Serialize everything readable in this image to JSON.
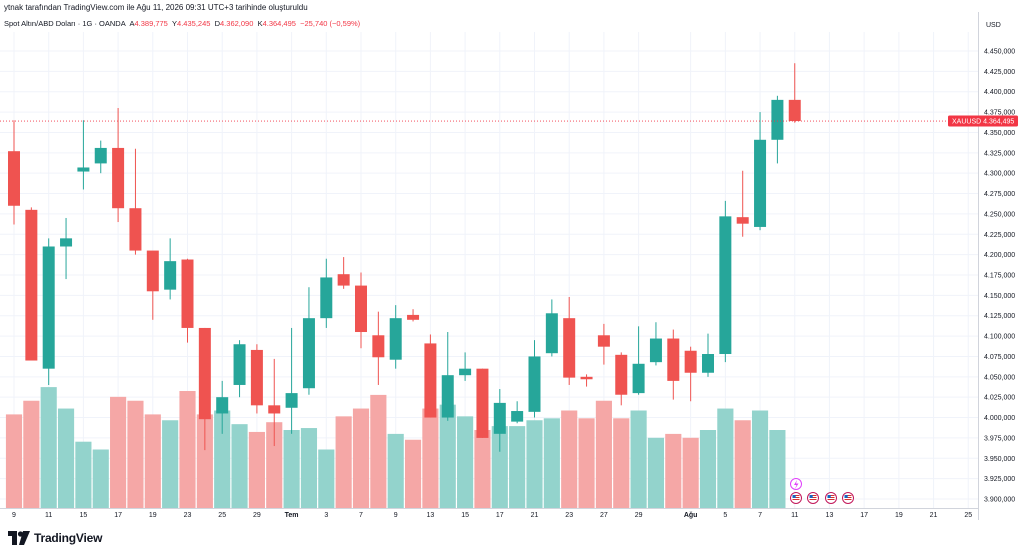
{
  "header": {
    "attribution": "ytnak tarafından TradingView.com ile Ağu 11, 2026 09:31 UTC+3 tarihinde oluşturuldu"
  },
  "legend": {
    "symbol_desc": "Spot Altın/ABD Doları · 1G · OANDA",
    "o_label": "A",
    "o_val": "4.389,775",
    "h_label": "Y",
    "h_val": "4.435,245",
    "l_label": "D",
    "l_val": "4.362,090",
    "c_label": "K",
    "c_val": "4.364,495",
    "change": "−25,740 (−0,59%)"
  },
  "brand": {
    "name": "TradingView",
    "logo_icon": "tradingview-logo-icon"
  },
  "colors": {
    "up": "#26a69a",
    "down": "#ef5350",
    "up_vol": "#93d3cc",
    "down_vol": "#f5a7a6",
    "grid": "#f0f3fa",
    "price_line": "#f23645"
  },
  "chart_data": {
    "type": "candlestick",
    "symbol": "XAUUSD",
    "currency": "USD",
    "last_price": "4.364,495",
    "ylim": [
      3890000,
      4460000
    ],
    "y_ticks": [
      "4.450,000",
      "4.425,000",
      "4.400,000",
      "4.375,000",
      "4.350,000",
      "4.325,000",
      "4.300,000",
      "4.275,000",
      "4.250,000",
      "4.225,000",
      "4.200,000",
      "4.175,000",
      "4.150,000",
      "4.125,000",
      "4.100,000",
      "4.075,000",
      "4.050,000",
      "4.025,000",
      "4.000,000",
      "3.975,000",
      "3.950,000",
      "3.925,000",
      "3.900,000"
    ],
    "x_ticks": [
      {
        "label": "9",
        "i": 0
      },
      {
        "label": "11",
        "i": 2
      },
      {
        "label": "15",
        "i": 4
      },
      {
        "label": "17",
        "i": 6
      },
      {
        "label": "19",
        "i": 8
      },
      {
        "label": "23",
        "i": 10
      },
      {
        "label": "25",
        "i": 12
      },
      {
        "label": "29",
        "i": 14
      },
      {
        "label": "Tem",
        "i": 16
      },
      {
        "label": "3",
        "i": 18
      },
      {
        "label": "7",
        "i": 20
      },
      {
        "label": "9",
        "i": 22
      },
      {
        "label": "13",
        "i": 24
      },
      {
        "label": "15",
        "i": 26
      },
      {
        "label": "17",
        "i": 28
      },
      {
        "label": "21",
        "i": 30
      },
      {
        "label": "23",
        "i": 32
      },
      {
        "label": "27",
        "i": 34
      },
      {
        "label": "29",
        "i": 36
      },
      {
        "label": "Ağu",
        "i": 39
      },
      {
        "label": "5",
        "i": 41
      },
      {
        "label": "7",
        "i": 43
      },
      {
        "label": "11",
        "i": 45
      },
      {
        "label": "13",
        "i": 47
      },
      {
        "label": "17",
        "i": 49
      },
      {
        "label": "19",
        "i": 51
      },
      {
        "label": "21",
        "i": 53
      },
      {
        "label": "25",
        "i": 55
      }
    ],
    "candles": [
      {
        "o": 4327,
        "h": 4365,
        "l": 4237,
        "c": 4260,
        "v": 4.8
      },
      {
        "o": 4255,
        "h": 4258,
        "l": 4070,
        "c": 4070,
        "v": 5.5
      },
      {
        "o": 4060,
        "h": 4220,
        "l": 4040,
        "c": 4210,
        "v": 6.2
      },
      {
        "o": 4210,
        "h": 4245,
        "l": 4170,
        "c": 4220,
        "v": 5.1
      },
      {
        "o": 4302,
        "h": 4365,
        "l": 4280,
        "c": 4307,
        "v": 3.4
      },
      {
        "o": 4312,
        "h": 4340,
        "l": 4300,
        "c": 4331,
        "v": 3.0
      },
      {
        "o": 4331,
        "h": 4380,
        "l": 4240,
        "c": 4257,
        "v": 5.7
      },
      {
        "o": 4257,
        "h": 4330,
        "l": 4200,
        "c": 4205,
        "v": 5.5
      },
      {
        "o": 4205,
        "h": 4202,
        "l": 4120,
        "c": 4155,
        "v": 4.8
      },
      {
        "o": 4157,
        "h": 4220,
        "l": 4145,
        "c": 4192,
        "v": 4.5
      },
      {
        "o": 4194,
        "h": 4195,
        "l": 4092,
        "c": 4110,
        "v": 6.0
      },
      {
        "o": 4110,
        "h": 4110,
        "l": 3960,
        "c": 3998,
        "v": 4.8
      },
      {
        "o": 4005,
        "h": 4045,
        "l": 3980,
        "c": 4025,
        "v": 5.0
      },
      {
        "o": 4040,
        "h": 4095,
        "l": 4025,
        "c": 4090,
        "v": 4.3
      },
      {
        "o": 4083,
        "h": 4090,
        "l": 4005,
        "c": 4015,
        "v": 3.9
      },
      {
        "o": 4015,
        "h": 4072,
        "l": 3965,
        "c": 4005,
        "v": 4.4
      },
      {
        "o": 4012,
        "h": 4110,
        "l": 3980,
        "c": 4030,
        "v": 4.0
      },
      {
        "o": 4036,
        "h": 4160,
        "l": 4028,
        "c": 4122,
        "v": 4.1
      },
      {
        "o": 4122,
        "h": 4195,
        "l": 4110,
        "c": 4172,
        "v": 3.0
      },
      {
        "o": 4176,
        "h": 4197,
        "l": 4158,
        "c": 4162,
        "v": 4.7
      },
      {
        "o": 4162,
        "h": 4178,
        "l": 4085,
        "c": 4105,
        "v": 5.1
      },
      {
        "o": 4101,
        "h": 4130,
        "l": 4040,
        "c": 4074,
        "v": 5.8
      },
      {
        "o": 4071,
        "h": 4138,
        "l": 4060,
        "c": 4122,
        "v": 3.8
      },
      {
        "o": 4126,
        "h": 4133,
        "l": 4118,
        "c": 4120,
        "v": 3.5
      },
      {
        "o": 4091,
        "h": 4102,
        "l": 4000,
        "c": 4000,
        "v": 5.1
      },
      {
        "o": 4000,
        "h": 4105,
        "l": 3996,
        "c": 4052,
        "v": 5.3
      },
      {
        "o": 4052,
        "h": 4080,
        "l": 4045,
        "c": 4060,
        "v": 4.7
      },
      {
        "o": 4060,
        "h": 4060,
        "l": 3975,
        "c": 3975,
        "v": 4.0
      },
      {
        "o": 3980,
        "h": 4035,
        "l": 3958,
        "c": 4018,
        "v": 4.2
      },
      {
        "o": 3995,
        "h": 4020,
        "l": 3993,
        "c": 4008,
        "v": 4.2
      },
      {
        "o": 4007,
        "h": 4095,
        "l": 4000,
        "c": 4075,
        "v": 4.5
      },
      {
        "o": 4079,
        "h": 4145,
        "l": 4075,
        "c": 4128,
        "v": 4.6
      },
      {
        "o": 4122,
        "h": 4148,
        "l": 4040,
        "c": 4049,
        "v": 5.0
      },
      {
        "o": 4050,
        "h": 4053,
        "l": 4038,
        "c": 4047,
        "v": 4.6
      },
      {
        "o": 4101,
        "h": 4115,
        "l": 4065,
        "c": 4087,
        "v": 5.5
      },
      {
        "o": 4077,
        "h": 4080,
        "l": 4015,
        "c": 4028,
        "v": 4.6
      },
      {
        "o": 4030,
        "h": 4112,
        "l": 4028,
        "c": 4066,
        "v": 5.0
      },
      {
        "o": 4068,
        "h": 4117,
        "l": 4064,
        "c": 4097,
        "v": 3.6
      },
      {
        "o": 4097,
        "h": 4108,
        "l": 4022,
        "c": 4045,
        "v": 3.8
      },
      {
        "o": 4082,
        "h": 4087,
        "l": 4020,
        "c": 4055,
        "v": 3.6
      },
      {
        "o": 4055,
        "h": 4103,
        "l": 4050,
        "c": 4078,
        "v": 4.0
      },
      {
        "o": 4078,
        "h": 4266,
        "l": 4068,
        "c": 4247,
        "v": 5.1
      },
      {
        "o": 4246,
        "h": 4303,
        "l": 4222,
        "c": 4238,
        "v": 4.5
      },
      {
        "o": 4234,
        "h": 4375,
        "l": 4230,
        "c": 4341,
        "v": 5.0
      },
      {
        "o": 4341,
        "h": 4395,
        "l": 4312,
        "c": 4390,
        "v": 4.0
      },
      {
        "o": 4390,
        "h": 4435,
        "l": 4362,
        "c": 4364,
        "v": 0
      }
    ],
    "event_icons": [
      "lightning-icon",
      "us-flag-icon",
      "us-flag-icon",
      "us-flag-icon",
      "us-flag-icon"
    ]
  }
}
